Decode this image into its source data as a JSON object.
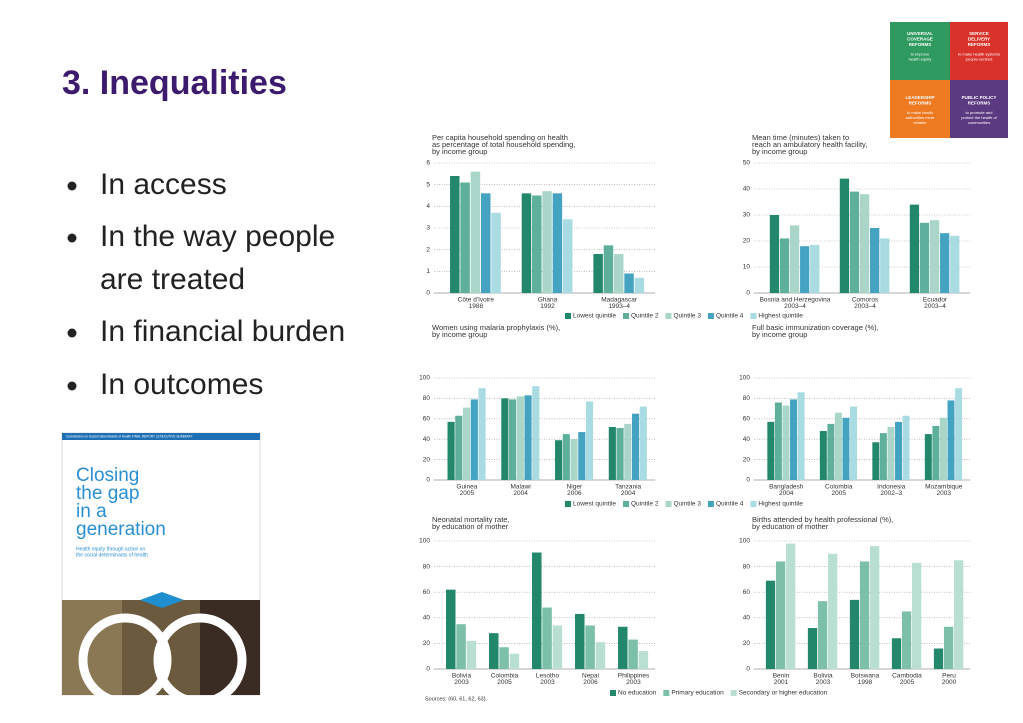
{
  "title": "3. Inequalities",
  "bullets": [
    [
      "In access"
    ],
    [
      "In the way people",
      "are treated"
    ],
    [
      "In financial burden"
    ],
    [
      "In outcomes"
    ]
  ],
  "framework": [
    {
      "heading": [
        "UNIVERSAL",
        "COVERAGE",
        "REFORMS"
      ],
      "text": [
        "to improve",
        "health equity"
      ]
    },
    {
      "heading": [
        "SERVICE",
        "DELIVERY",
        "REFORMS"
      ],
      "text": [
        "to make health systems",
        "people-centred"
      ]
    },
    {
      "heading": [
        "LEADERSHIP",
        "REFORMS"
      ],
      "text": [
        "to make health",
        "authorities more",
        "reliable"
      ]
    },
    {
      "heading": [
        "PUBLIC POLICY",
        "REFORMS"
      ],
      "text": [
        "to promote and",
        "protect the health of",
        "communities"
      ]
    }
  ],
  "cover": {
    "banner": "Commission on Social Determinants of Health FINAL REPORT | EXECUTIVE SUMMARY",
    "title": [
      "Closing",
      "the gap",
      "in a",
      "generation"
    ],
    "subtitle": [
      "Health equity through action on",
      "the social determinants of health"
    ]
  },
  "sources": "Sources: (60, 61, 62, 63).",
  "chart_data": [
    {
      "type": "bar",
      "title": [
        "Per capita household spending on health",
        "as percentage of total household spending,",
        "by income group"
      ],
      "categories": [
        [
          "Côte d'Ivoire",
          "1988"
        ],
        [
          "Ghana",
          "1992"
        ],
        [
          "Madagascar",
          "1993–4"
        ]
      ],
      "series": [
        {
          "name": "Lowest quintile",
          "color": "#23876b",
          "values": [
            5.4,
            4.6,
            1.8
          ]
        },
        {
          "name": "Quintile 2",
          "color": "#5eb09c",
          "values": [
            5.1,
            4.5,
            2.2
          ]
        },
        {
          "name": "Quintile 3",
          "color": "#a9d6c8",
          "values": [
            5.6,
            4.7,
            1.8
          ]
        },
        {
          "name": "Quintile 4",
          "color": "#45a3c2",
          "values": [
            4.6,
            4.6,
            0.9
          ]
        },
        {
          "name": "Highest quintile",
          "color": "#a8dbe2",
          "values": [
            3.7,
            3.4,
            0.7
          ]
        }
      ],
      "ylim": [
        0,
        6
      ],
      "yticks": [
        0,
        1,
        2,
        3,
        4,
        5,
        6
      ],
      "grid": true
    },
    {
      "type": "bar",
      "title": [
        "Mean time (minutes) taken to",
        "reach an ambulatory health facility,",
        "by income group"
      ],
      "categories": [
        [
          "Bosnia and Herzegovina",
          "2003–4"
        ],
        [
          "Comoros",
          "2003–4"
        ],
        [
          "Ecuador",
          "2003–4"
        ]
      ],
      "series": [
        {
          "color": "#23876b",
          "values": [
            30,
            44,
            34
          ]
        },
        {
          "color": "#5eb09c",
          "values": [
            21,
            39,
            27
          ]
        },
        {
          "color": "#a9d6c8",
          "values": [
            26,
            38,
            28
          ]
        },
        {
          "color": "#45a3c2",
          "values": [
            18,
            25,
            23
          ]
        },
        {
          "color": "#a8dbe2",
          "values": [
            18.5,
            21,
            22
          ]
        }
      ],
      "ylim": [
        0,
        50
      ],
      "yticks": [
        0,
        10,
        20,
        30,
        40,
        50
      ],
      "grid": true
    },
    {
      "type": "bar",
      "title": [
        "Women using malaria prophylaxis (%),",
        "by income group"
      ],
      "categories": [
        [
          "Guinea",
          "2005"
        ],
        [
          "Malawi",
          "2004"
        ],
        [
          "Niger",
          "2006"
        ],
        [
          "Tanzania",
          "2004"
        ]
      ],
      "series": [
        {
          "name": "Lowest quintile",
          "color": "#23876b",
          "values": [
            57,
            80,
            39,
            52
          ]
        },
        {
          "name": "Quintile 2",
          "color": "#5eb09c",
          "values": [
            63,
            79,
            45,
            51
          ]
        },
        {
          "name": "Quintile 3",
          "color": "#a9d6c8",
          "values": [
            71,
            82,
            40,
            55
          ]
        },
        {
          "name": "Quintile 4",
          "color": "#45a3c2",
          "values": [
            79,
            83,
            47,
            65
          ]
        },
        {
          "name": "Highest quintile",
          "color": "#a8dbe2",
          "values": [
            90,
            92,
            77,
            72
          ]
        }
      ],
      "ylim": [
        0,
        100
      ],
      "yticks": [
        0,
        20,
        40,
        60,
        80,
        100
      ],
      "grid": true
    },
    {
      "type": "bar",
      "title": [
        "Full basic immunization coverage (%),",
        "by income group"
      ],
      "categories": [
        [
          "Bangladesh",
          "2004"
        ],
        [
          "Colombia",
          "2005"
        ],
        [
          "Indonesia",
          "2002–3"
        ],
        [
          "Mozambique",
          "2003"
        ]
      ],
      "series": [
        {
          "color": "#23876b",
          "values": [
            57,
            48,
            37,
            45
          ]
        },
        {
          "color": "#5eb09c",
          "values": [
            76,
            55,
            46,
            53
          ]
        },
        {
          "color": "#a9d6c8",
          "values": [
            73,
            66,
            52,
            61
          ]
        },
        {
          "color": "#45a3c2",
          "values": [
            79,
            61,
            57,
            78
          ]
        },
        {
          "color": "#a8dbe2",
          "values": [
            86,
            72,
            63,
            90
          ]
        }
      ],
      "ylim": [
        0,
        100
      ],
      "yticks": [
        0,
        20,
        40,
        60,
        80,
        100
      ],
      "grid": true
    },
    {
      "type": "bar",
      "title": [
        "Neonatal mortality rate,",
        "by education of mother"
      ],
      "categories": [
        [
          "Bolivia",
          "2003"
        ],
        [
          "Colombia",
          "2005"
        ],
        [
          "Lesotho",
          "2003"
        ],
        [
          "Nepal",
          "2006"
        ],
        [
          "Philippines",
          "2003"
        ]
      ],
      "series": [
        {
          "name": "No education",
          "color": "#23876b",
          "values": [
            62,
            28,
            91,
            43,
            33
          ]
        },
        {
          "name": "Primary education",
          "color": "#7cc0a9",
          "values": [
            35,
            17,
            48,
            34,
            23
          ]
        },
        {
          "name": "Secondary or higher education",
          "color": "#b9dfd3",
          "values": [
            22,
            12,
            34,
            21,
            14
          ]
        }
      ],
      "ylim": [
        0,
        100
      ],
      "yticks": [
        0,
        20,
        40,
        60,
        80,
        100
      ],
      "grid": true
    },
    {
      "type": "bar",
      "title": [
        "Births attended by health professional (%),",
        "by education of mother"
      ],
      "categories": [
        [
          "Benin",
          "2001"
        ],
        [
          "Bolivia",
          "2003"
        ],
        [
          "Botswana",
          "1998"
        ],
        [
          "Cambodia",
          "2005"
        ],
        [
          "Peru",
          "2000"
        ]
      ],
      "series": [
        {
          "color": "#23876b",
          "values": [
            69,
            32,
            54,
            24,
            16
          ]
        },
        {
          "color": "#7cc0a9",
          "values": [
            84,
            53,
            84,
            45,
            33
          ]
        },
        {
          "color": "#b9dfd3",
          "values": [
            98,
            90,
            96,
            83,
            85
          ]
        }
      ],
      "ylim": [
        0,
        100
      ],
      "yticks": [
        0,
        20,
        40,
        60,
        80,
        100
      ],
      "grid": true
    }
  ]
}
